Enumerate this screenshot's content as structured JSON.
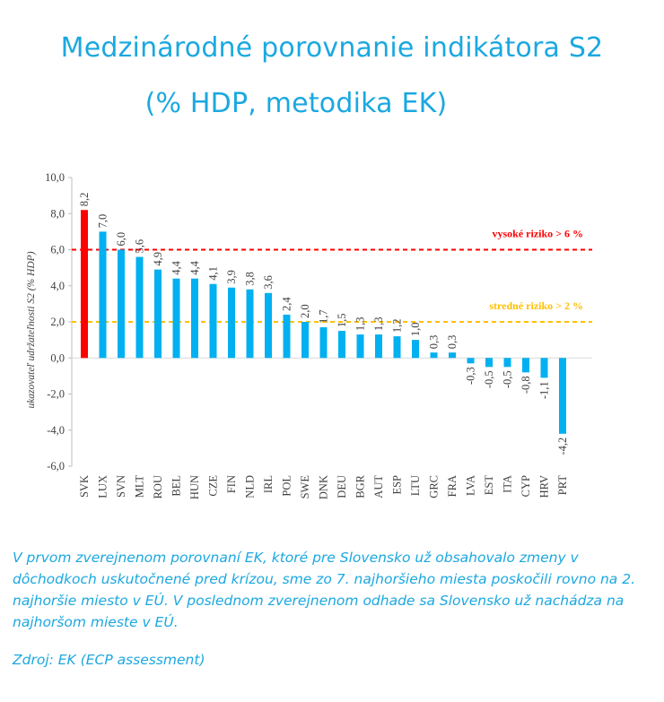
{
  "title_line1": "Medzinárodné porovnanie indikátora S2",
  "title_line2": "(% HDP, metodika EK)",
  "caption": "V prvom zverejnenom porovnaní EK, ktoré pre Slovensko už obsahovalo zmeny v dôchodkoch uskutočnené pred krízou, sme zo 7. najhoršieho miesta poskočili rovno na 2. najhoršie miesto v EÚ. V poslednom zverejnenom odhade sa Slovensko už nachádza na najhoršom mieste v EÚ.",
  "source": "Zdroj: EK (ECP assessment)",
  "colors": {
    "title": "#1ba8e0",
    "bar": "#00b0f0",
    "highlight": "#ff0000",
    "high_risk": "#ff0000",
    "medium_risk": "#ffc000"
  },
  "chart_data": {
    "type": "bar",
    "ylabel": "ukazovateľ udržateľnosti S2 (% HDP)",
    "ylim": [
      -6,
      10
    ],
    "yticks": [
      "10,0",
      "8,0",
      "6,0",
      "4,0",
      "2,0",
      "0,0",
      "-2,0",
      "-4,0",
      "-6,0"
    ],
    "ytick_values": [
      10,
      8,
      6,
      4,
      2,
      0,
      -2,
      -4,
      -6
    ],
    "grid": false,
    "highlight_category": "SVK",
    "categories": [
      "SVK",
      "LUX",
      "SVN",
      "MLT",
      "ROU",
      "BEL",
      "HUN",
      "CZE",
      "FIN",
      "NLD",
      "IRL",
      "POL",
      "SWE",
      "DNK",
      "DEU",
      "BGR",
      "AUT",
      "ESP",
      "LTU",
      "GRC",
      "FRA",
      "LVA",
      "EST",
      "ITA",
      "CYP",
      "HRV",
      "PRT"
    ],
    "values": [
      8.2,
      7.0,
      6.0,
      5.6,
      4.9,
      4.4,
      4.4,
      4.1,
      3.9,
      3.8,
      3.6,
      2.4,
      2.0,
      1.7,
      1.5,
      1.3,
      1.3,
      1.2,
      1.0,
      0.3,
      0.3,
      -0.3,
      -0.5,
      -0.5,
      -0.8,
      -1.1,
      -4.2
    ],
    "value_labels": [
      "8,2",
      "7,0",
      "6,0",
      "5,6",
      "4,9",
      "4,4",
      "4,4",
      "4,1",
      "3,9",
      "3,8",
      "3,6",
      "2,4",
      "2,0",
      "1,7",
      "1,5",
      "1,3",
      "1,3",
      "1,2",
      "1,0",
      "0,3",
      "0,3",
      "-0,3",
      "-0,5",
      "-0,5",
      "-0,8",
      "-1,1",
      "-4,2"
    ],
    "reference_lines": [
      {
        "value": 6,
        "label": "vysoké riziko > 6 %",
        "color": "#ff0000"
      },
      {
        "value": 2,
        "label": "stredné riziko > 2 %",
        "color": "#ffc000"
      }
    ]
  }
}
